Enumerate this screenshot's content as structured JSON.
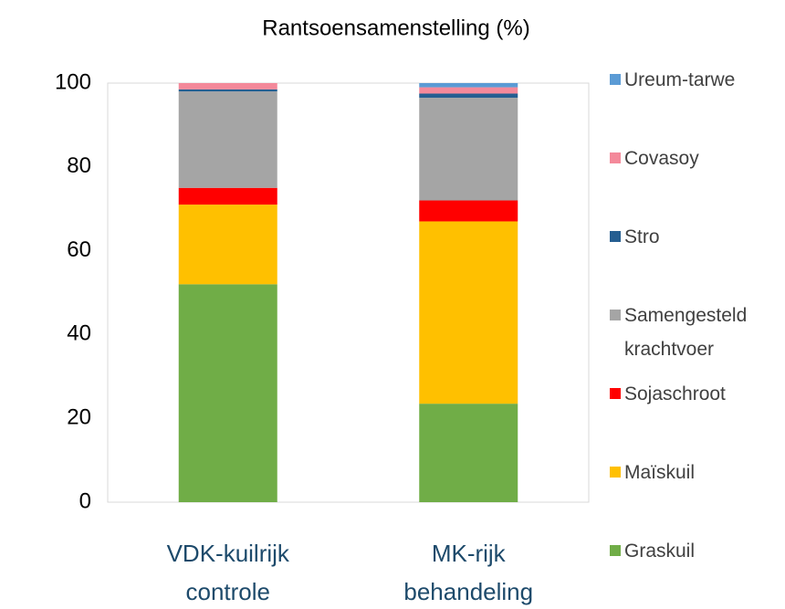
{
  "chart_data": {
    "type": "bar",
    "stacked": true,
    "title": "Rantsoensamenstelling (%)",
    "categories": [
      "VDK-kuilrijk controle",
      "MK-rijk behandeling"
    ],
    "series": [
      {
        "name": "Graskuil",
        "color": "#70ad47",
        "values": [
          52,
          23.5
        ]
      },
      {
        "name": "Maïskuil",
        "color": "#ffc000",
        "values": [
          19,
          43.5
        ]
      },
      {
        "name": "Sojaschroot",
        "color": "#ff0000",
        "values": [
          4,
          5
        ]
      },
      {
        "name": "Samengesteld krachtvoer",
        "color": "#a5a5a5",
        "values": [
          23,
          24.5
        ]
      },
      {
        "name": "Stro",
        "color": "#255e91",
        "values": [
          0.5,
          1
        ]
      },
      {
        "name": "Covasoy",
        "color": "#f4899a",
        "values": [
          1.5,
          1.5
        ]
      },
      {
        "name": "Ureum-tarwe",
        "color": "#5b9bd5",
        "values": [
          0,
          1
        ]
      }
    ],
    "ylim": [
      0,
      100
    ],
    "yticks": [
      0,
      20,
      40,
      60,
      80,
      100
    ],
    "grid": false,
    "legend": "right"
  }
}
